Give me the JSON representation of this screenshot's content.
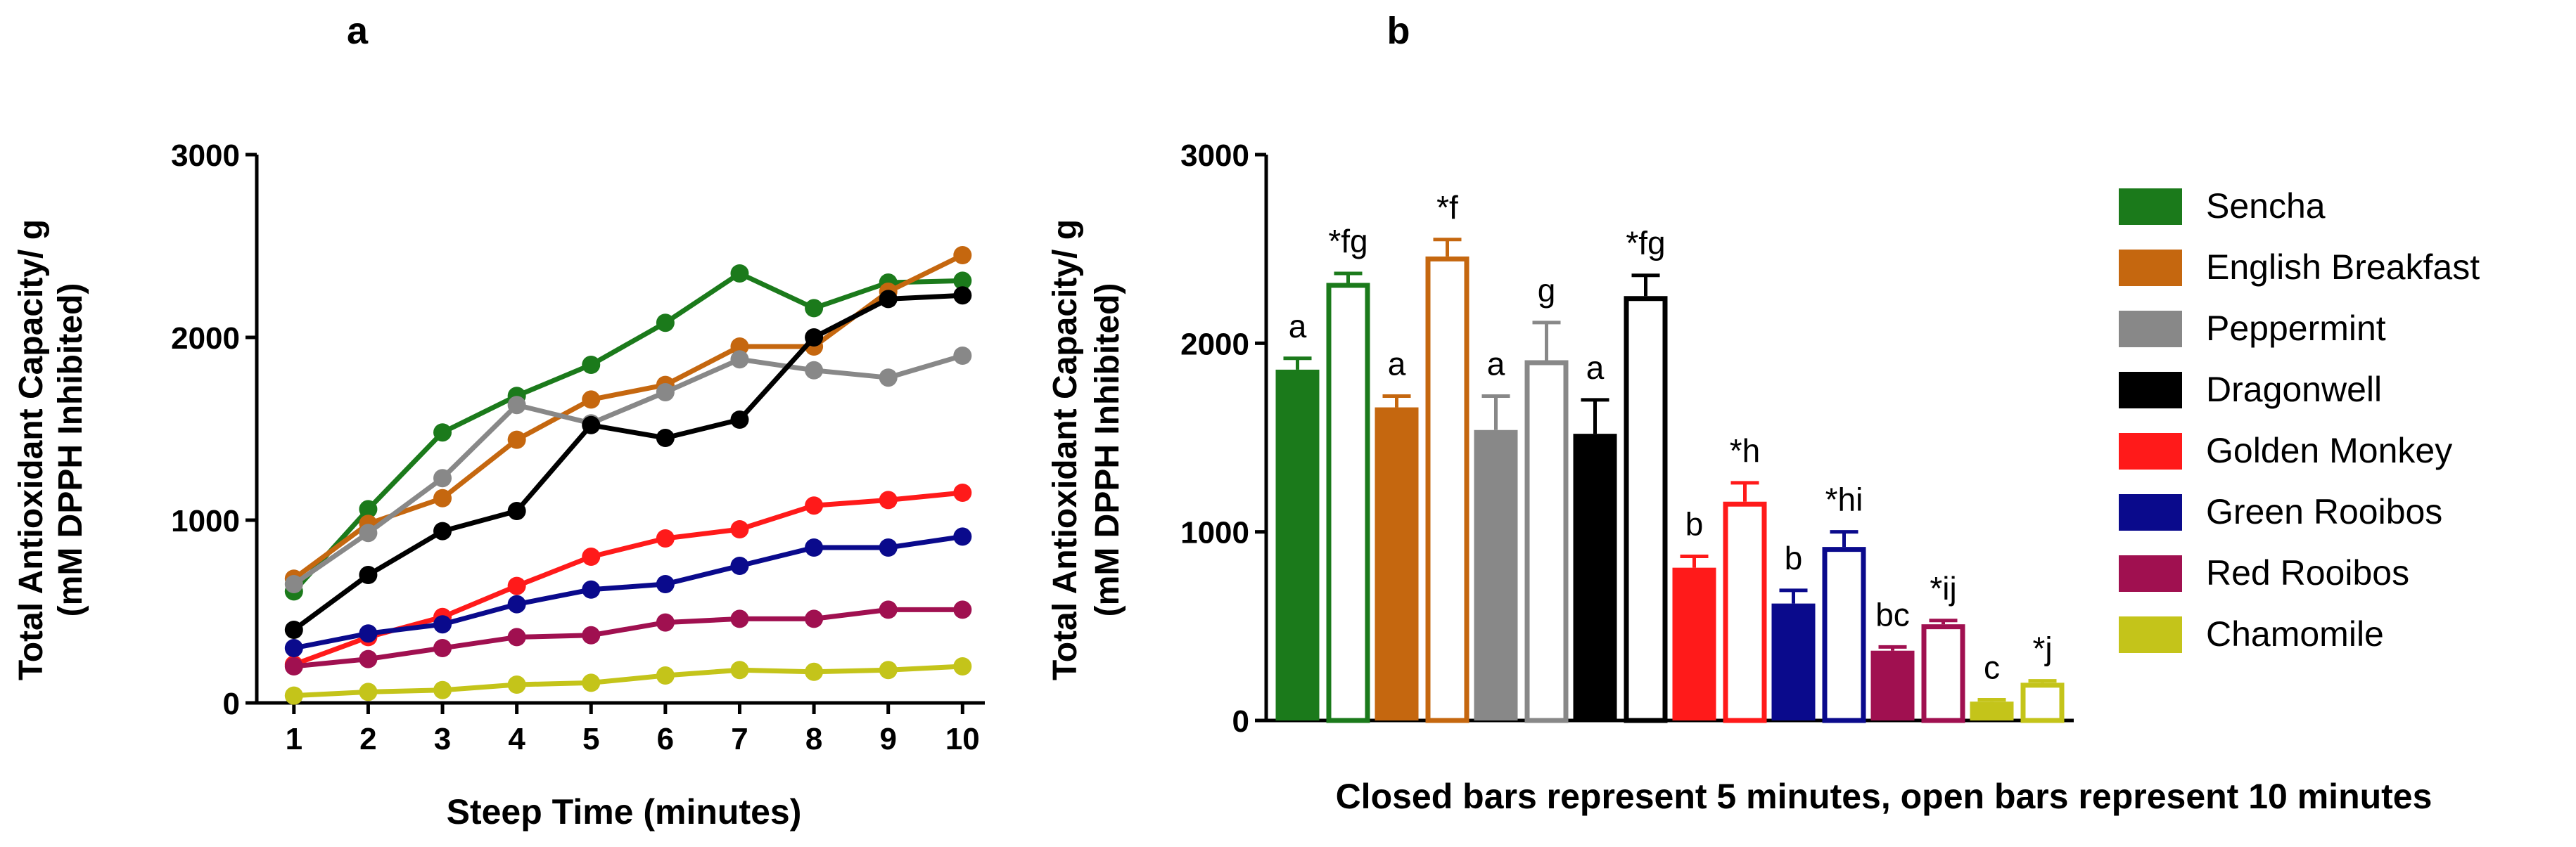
{
  "panel_labels": {
    "a": "a",
    "b": "b"
  },
  "ylabel": {
    "line1": "Total Antioxidant Capacity/ g",
    "line2": "(mM DPPH Inhibited)"
  },
  "caption": "Closed bars represent 5 minutes, open bars represent 10 minutes",
  "chart_data": [
    {
      "type": "line",
      "panel": "a",
      "title": "",
      "xlabel": "Steep Time (minutes)",
      "ylabel": "Total Antioxidant Capacity/ g (mM DPPH Inhibited)",
      "x": [
        1,
        2,
        3,
        4,
        5,
        6,
        7,
        8,
        9,
        10
      ],
      "xlim": [
        0.5,
        10.3
      ],
      "ylim": [
        0,
        3000
      ],
      "yticks": [
        0,
        1000,
        2000,
        3000
      ],
      "series": [
        {
          "name": "Sencha",
          "color": "#1b7a1b",
          "values": [
            610,
            1060,
            1480,
            1680,
            1850,
            2080,
            2350,
            2160,
            2300,
            2310
          ]
        },
        {
          "name": "English Breakfast",
          "color": "#c5670f",
          "values": [
            680,
            980,
            1120,
            1440,
            1660,
            1740,
            1950,
            1950,
            2250,
            2450
          ]
        },
        {
          "name": "Peppermint",
          "color": "#888888",
          "values": [
            650,
            930,
            1230,
            1630,
            1530,
            1700,
            1880,
            1820,
            1780,
            1900
          ]
        },
        {
          "name": "Dragonwell",
          "color": "#000000",
          "values": [
            400,
            700,
            940,
            1050,
            1520,
            1450,
            1550,
            2000,
            2210,
            2230
          ]
        },
        {
          "name": "Golden Monkey",
          "color": "#ff1a1a",
          "values": [
            210,
            360,
            470,
            640,
            800,
            900,
            950,
            1080,
            1110,
            1150
          ]
        },
        {
          "name": "Green Rooibos",
          "color": "#0a0a8c",
          "values": [
            300,
            380,
            430,
            540,
            620,
            650,
            750,
            850,
            850,
            910
          ]
        },
        {
          "name": "Red Rooibos",
          "color": "#a01050",
          "values": [
            200,
            240,
            300,
            360,
            370,
            440,
            460,
            460,
            510,
            510
          ]
        },
        {
          "name": "Chamomile",
          "color": "#c4c41a",
          "values": [
            40,
            60,
            70,
            100,
            110,
            150,
            180,
            170,
            180,
            200
          ]
        }
      ]
    },
    {
      "type": "bar",
      "panel": "b",
      "title": "",
      "xlabel": "",
      "ylabel": "Total Antioxidant Capacity/ g (mM DPPH Inhibited)",
      "ylim": [
        0,
        3000
      ],
      "yticks": [
        0,
        1000,
        2000,
        3000
      ],
      "legend_position": "right",
      "note": "Closed bars represent 5 minutes, open bars represent 10 minutes",
      "series": [
        {
          "name": "Sencha",
          "color": "#1b7a1b",
          "closed": 1860,
          "closed_err": 60,
          "closed_label": "a",
          "open": 2320,
          "open_err": 50,
          "open_label": "*fg"
        },
        {
          "name": "English Breakfast",
          "color": "#c5670f",
          "closed": 1660,
          "closed_err": 60,
          "closed_label": "a",
          "open": 2460,
          "open_err": 90,
          "open_label": "*f"
        },
        {
          "name": "Peppermint",
          "color": "#888888",
          "closed": 1540,
          "closed_err": 180,
          "closed_label": "a",
          "open": 1910,
          "open_err": 200,
          "open_label": "g"
        },
        {
          "name": "Dragonwell",
          "color": "#000000",
          "closed": 1520,
          "closed_err": 180,
          "closed_label": "a",
          "open": 2250,
          "open_err": 110,
          "open_label": "*fg"
        },
        {
          "name": "Golden Monkey",
          "color": "#ff1a1a",
          "closed": 810,
          "closed_err": 60,
          "closed_label": "b",
          "open": 1160,
          "open_err": 100,
          "open_label": "*h"
        },
        {
          "name": "Green Rooibos",
          "color": "#0a0a8c",
          "closed": 620,
          "closed_err": 70,
          "closed_label": "b",
          "open": 920,
          "open_err": 80,
          "open_label": "*hi"
        },
        {
          "name": "Red Rooibos",
          "color": "#a01050",
          "closed": 370,
          "closed_err": 20,
          "closed_label": "bc",
          "open": 510,
          "open_err": 20,
          "open_label": "*ij"
        },
        {
          "name": "Chamomile",
          "color": "#c4c41a",
          "closed": 100,
          "closed_err": 10,
          "closed_label": "c",
          "open": 200,
          "open_err": 10,
          "open_label": "*j"
        }
      ]
    }
  ]
}
